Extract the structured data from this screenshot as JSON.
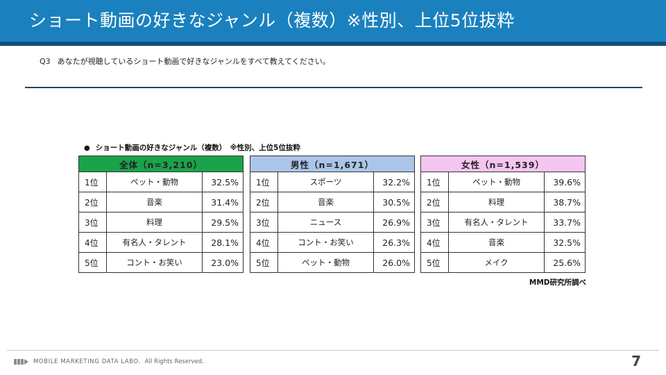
{
  "header": {
    "title": "ショート動画の好きなジャンル（複数）※性別、上位5位抜粋"
  },
  "question": {
    "number": "Q3",
    "text": "あなたが視聴しているショート動画で好きなジャンルをすべて教えてください。"
  },
  "table_title": "ショート動画の好きなジャンル（複数）　※性別、上位5位抜粋",
  "colors": {
    "header_bg": "#1a81be",
    "all_header": "#1aa34a",
    "male_header": "#a9c6e8",
    "female_header": "#f5c6f0"
  },
  "tables": {
    "all": {
      "header": "全体（n=3,210）",
      "rows": [
        {
          "rank": "1位",
          "genre": "ペット・動物",
          "pct": "32.5%"
        },
        {
          "rank": "2位",
          "genre": "音楽",
          "pct": "31.4%"
        },
        {
          "rank": "3位",
          "genre": "料理",
          "pct": "29.5%"
        },
        {
          "rank": "4位",
          "genre": "有名人・タレント",
          "pct": "28.1%"
        },
        {
          "rank": "5位",
          "genre": "コント・お笑い",
          "pct": "23.0%"
        }
      ]
    },
    "male": {
      "header": "男性（n=1,671）",
      "rows": [
        {
          "rank": "1位",
          "genre": "スポーツ",
          "pct": "32.2%"
        },
        {
          "rank": "2位",
          "genre": "音楽",
          "pct": "30.5%"
        },
        {
          "rank": "3位",
          "genre": "ニュース",
          "pct": "26.9%"
        },
        {
          "rank": "4位",
          "genre": "コント・お笑い",
          "pct": "26.3%"
        },
        {
          "rank": "5位",
          "genre": "ペット・動物",
          "pct": "26.0%"
        }
      ]
    },
    "female": {
      "header": "女性（n=1,539）",
      "rows": [
        {
          "rank": "1位",
          "genre": "ペット・動物",
          "pct": "39.6%"
        },
        {
          "rank": "2位",
          "genre": "料理",
          "pct": "38.7%"
        },
        {
          "rank": "3位",
          "genre": "有名人・タレント",
          "pct": "33.7%"
        },
        {
          "rank": "4位",
          "genre": "音楽",
          "pct": "32.5%"
        },
        {
          "rank": "5位",
          "genre": "メイク",
          "pct": "25.6%"
        }
      ]
    }
  },
  "source": "MMD研究所調べ",
  "footer": {
    "brand": "MOBILE MARKETING DATA LABO.",
    "rights": "All Rights Reserved."
  },
  "page_number": "7"
}
